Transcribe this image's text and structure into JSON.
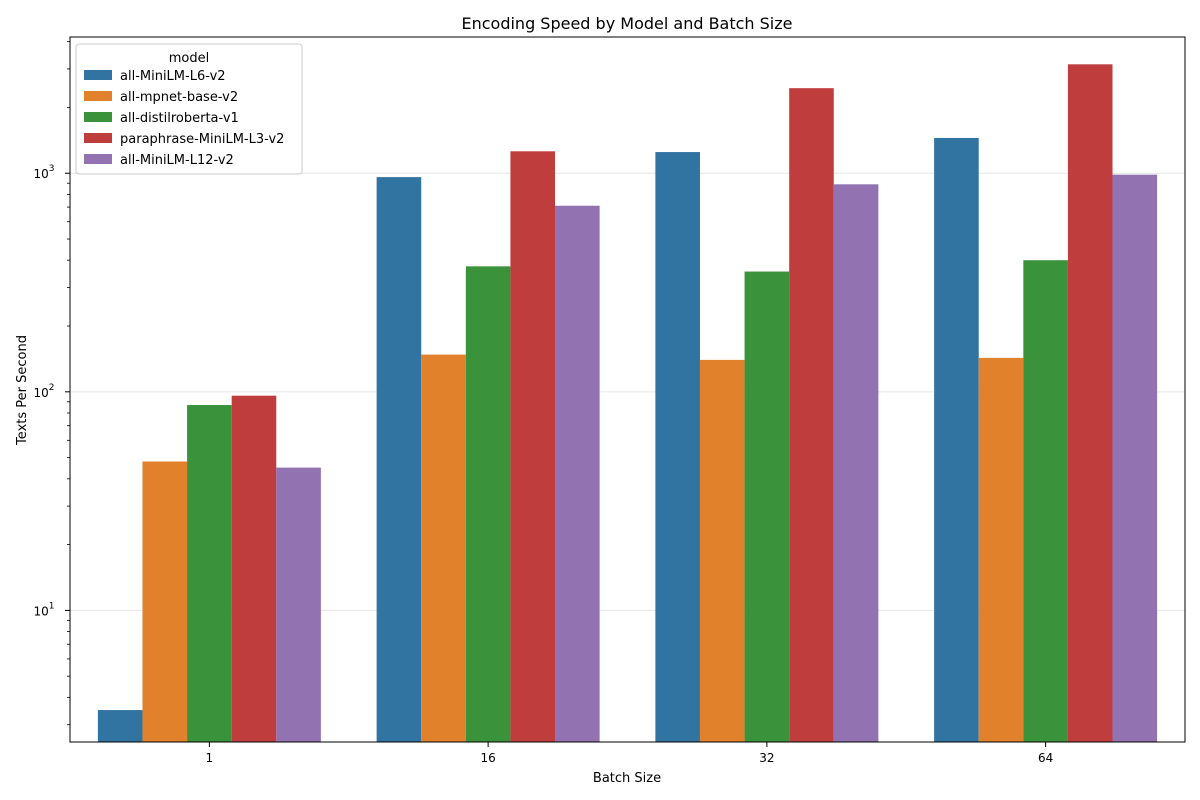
{
  "chart_data": {
    "type": "bar",
    "title": "Encoding Speed by Model and Batch Size",
    "xlabel": "Batch Size",
    "ylabel": "Texts Per Second",
    "yscale": "log",
    "ylim": [
      2.5,
      4200
    ],
    "y_ticks": [
      {
        "value": 10,
        "base": "10",
        "exp": "1"
      },
      {
        "value": 100,
        "base": "10",
        "exp": "2"
      },
      {
        "value": 1000,
        "base": "10",
        "exp": "3"
      }
    ],
    "grid": "horizontal",
    "categories": [
      "1",
      "16",
      "32",
      "64"
    ],
    "legend": {
      "title": "model",
      "placement": "top-left"
    },
    "series": [
      {
        "name": "all-MiniLM-L6-v2",
        "color": "#3274a1",
        "values": [
          3.5,
          960,
          1250,
          1450
        ]
      },
      {
        "name": "all-mpnet-base-v2",
        "color": "#e1812c",
        "values": [
          48,
          148,
          140,
          143
        ]
      },
      {
        "name": "all-distilroberta-v1",
        "color": "#3a923a",
        "values": [
          87,
          375,
          355,
          400
        ]
      },
      {
        "name": "paraphrase-MiniLM-L3-v2",
        "color": "#c03d3e",
        "values": [
          96,
          1260,
          2450,
          3150
        ]
      },
      {
        "name": "all-MiniLM-L12-v2",
        "color": "#9372b2",
        "values": [
          45,
          710,
          890,
          985
        ]
      }
    ]
  }
}
